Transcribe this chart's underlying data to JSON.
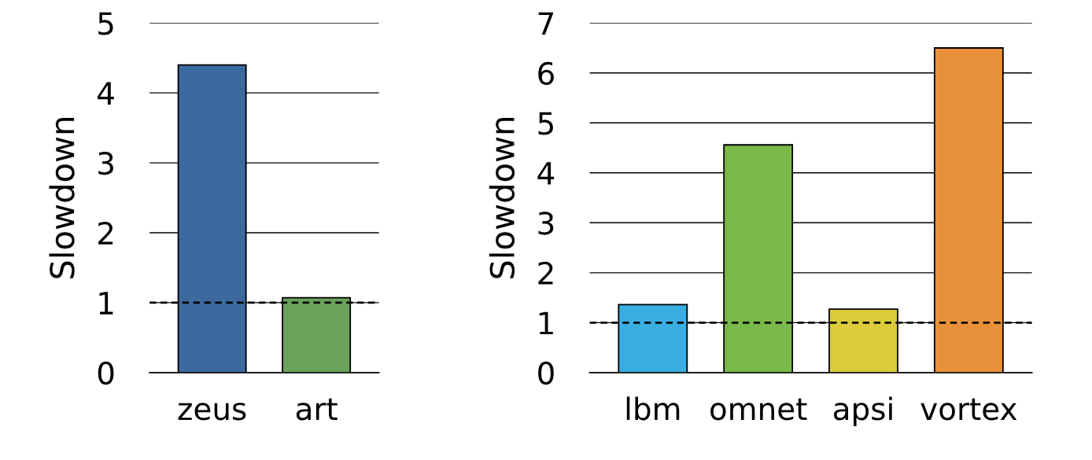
{
  "chart_data": [
    {
      "type": "bar",
      "ylabel": "Slowdown",
      "categories": [
        "zeus",
        "art"
      ],
      "colors": [
        "#3d6a9e",
        "#6aa35a"
      ],
      "values": [
        4.4,
        1.07
      ],
      "ylim": [
        0,
        5
      ],
      "yticks": [
        0,
        1,
        2,
        3,
        4,
        5
      ],
      "grid": "y",
      "ref_lines": [
        {
          "axis": "y",
          "value": 1,
          "color": "#000000",
          "line_style": "dashed"
        }
      ]
    },
    {
      "type": "bar",
      "ylabel": "Slowdown",
      "categories": [
        "lbm",
        "omnet",
        "apsi",
        "vortex"
      ],
      "colors": [
        "#3aaee2",
        "#78b94a",
        "#dccb3a",
        "#e8913a"
      ],
      "values": [
        1.36,
        4.56,
        1.27,
        6.5
      ],
      "ylim": [
        0,
        7
      ],
      "yticks": [
        0,
        1,
        2,
        3,
        4,
        5,
        6,
        7
      ],
      "grid": "y",
      "ref_lines": [
        {
          "axis": "y",
          "value": 1,
          "color": "#000000",
          "line_style": "dashed"
        }
      ]
    }
  ]
}
